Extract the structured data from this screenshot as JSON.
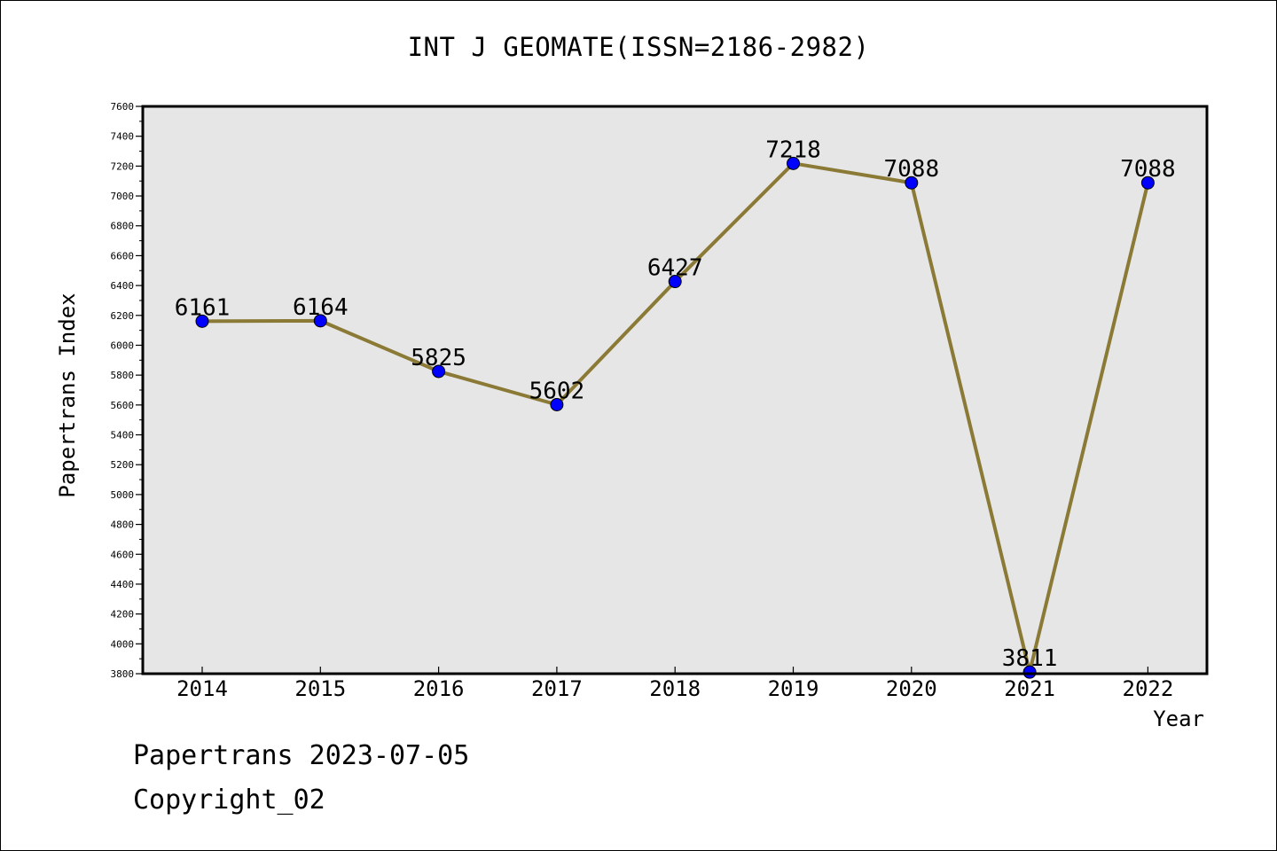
{
  "chart_data": {
    "type": "line",
    "title": "INT J GEOMATE(ISSN=2186-2982)",
    "xlabel": "Year",
    "ylabel": "Papertrans Index",
    "categories": [
      "2014",
      "2015",
      "2016",
      "2017",
      "2018",
      "2019",
      "2020",
      "2021",
      "2022"
    ],
    "series": [
      {
        "values": [
          6161,
          6164,
          5825,
          5602,
          6427,
          7218,
          7088,
          3811,
          7088
        ]
      }
    ],
    "ylim": [
      3800,
      7600
    ],
    "yticks": [
      "3800",
      "4000",
      "4200",
      "4400",
      "4600",
      "4800",
      "5000",
      "5200",
      "5400",
      "5600",
      "5800",
      "6000",
      "6200",
      "6400",
      "6600",
      "6800",
      "7000",
      "7200",
      "7400",
      "7600"
    ],
    "grid": false,
    "legend": "none",
    "colors": {
      "line": "#8b7a35",
      "marker": "#0000ff",
      "plot_background": "#e6e6e6"
    }
  },
  "footer": {
    "date_line": "Papertrans 2023-07-05",
    "copyright": "Copyright_02"
  }
}
